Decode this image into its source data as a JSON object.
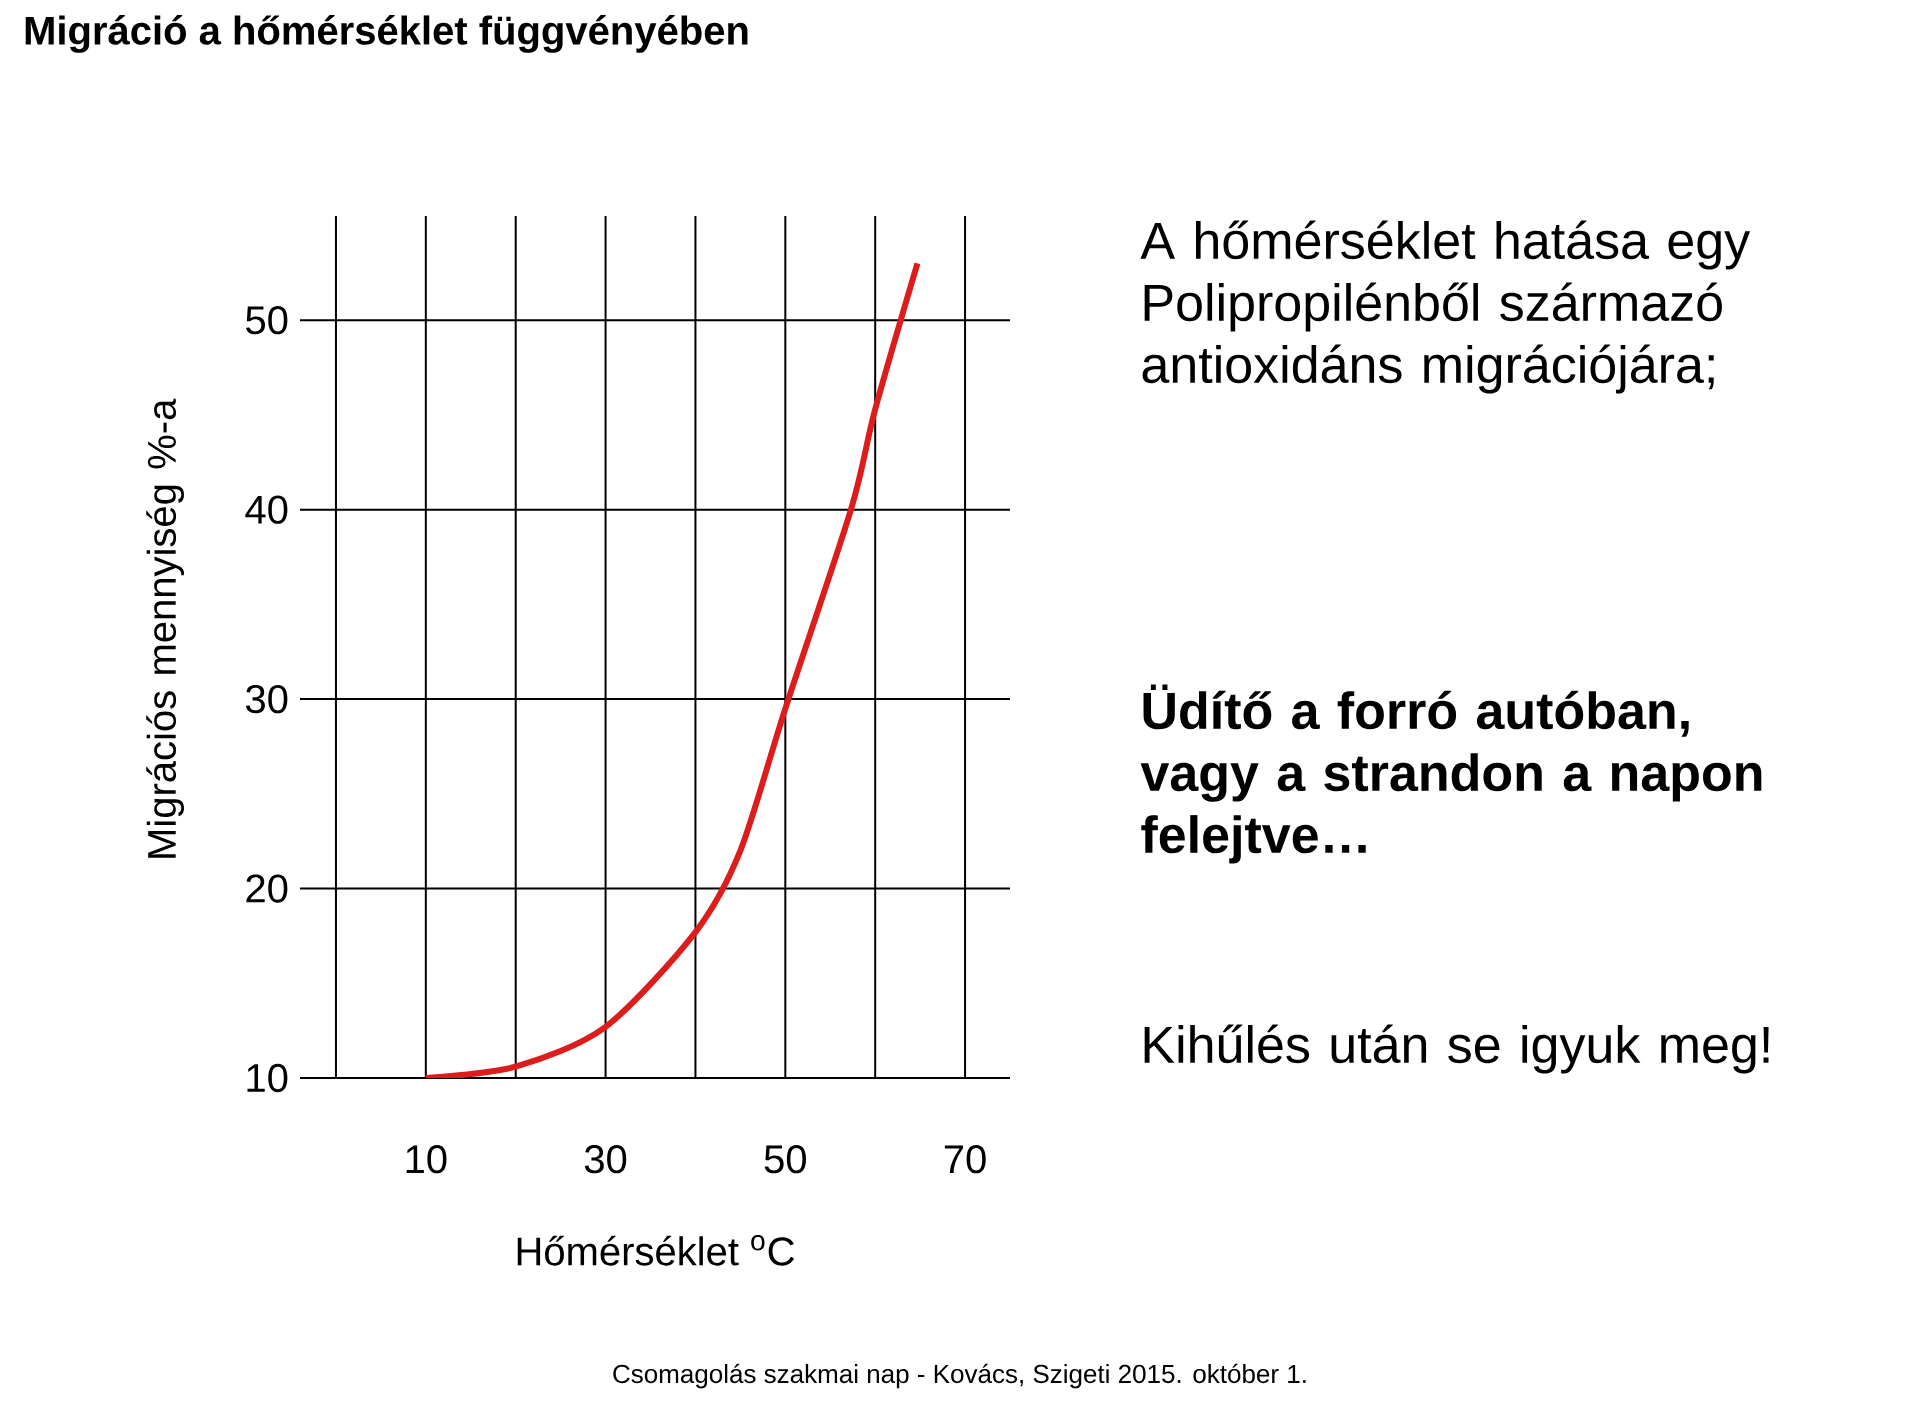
{
  "chart_data": {
    "type": "line",
    "title": "Migráció a hőmérséklet függvényében",
    "xlabel": "Hőmérséklet $^{o}$C",
    "ylabel": "Migrációs mennyiség %-a",
    "x": [
      10,
      20,
      30,
      40,
      45,
      50,
      57.3,
      60,
      64.7
    ],
    "series": [
      {
        "color": "#dd1c1c",
        "values": [
          10,
          10.6,
          12.7,
          17.7,
          22,
          29.5,
          40,
          45.3,
          53
        ]
      }
    ],
    "xlim": [
      -4,
      75
    ],
    "ylim": [
      10,
      55.5
    ],
    "xticks": [
      {
        "value": 0,
        "label": null
      },
      10,
      {
        "value": 20,
        "label": null
      },
      30,
      {
        "value": 40,
        "label": null
      },
      50,
      {
        "value": 60,
        "label": null
      },
      70
    ],
    "yticks": [
      10,
      20,
      30,
      40,
      50
    ],
    "grid": true,
    "marker": "none",
    "line_style": "solid",
    "annotations": [
      "A hőmérséklet hatása egy Polipropilénből származó antioxidáns migrációjára;",
      "Üdítő a forró autóban, vagy a strandon a napon felejtve…",
      "Kihűlés után se igyuk meg!",
      "Csomagolás szakmai nap - Kovács, Szigeti 2015. október 1."
    ]
  }
}
